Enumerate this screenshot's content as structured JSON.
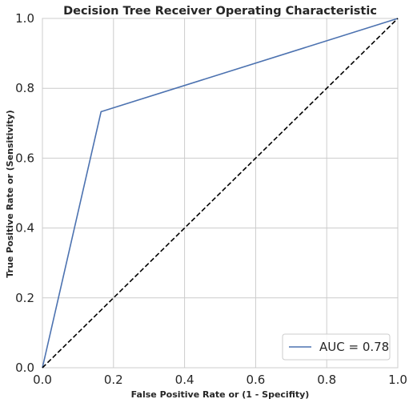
{
  "chart_data": {
    "type": "line",
    "title": "Decision Tree Receiver Operating Characteristic",
    "xlabel": "False Positive Rate or (1 - Specifity)",
    "ylabel": "True Positive Rate or (Sensitivity)",
    "xlim": [
      0.0,
      1.0
    ],
    "ylim": [
      0.0,
      1.0
    ],
    "xticks": [
      "0.0",
      "0.2",
      "0.4",
      "0.6",
      "0.8",
      "1.0"
    ],
    "yticks": [
      "0.0",
      "0.2",
      "0.4",
      "0.6",
      "0.8",
      "1.0"
    ],
    "grid": true,
    "legend_position": "lower-right",
    "series": [
      {
        "name": "AUC = 0.78",
        "style": "solid",
        "color": "#4c72b0",
        "x": [
          0.0,
          0.165,
          1.0
        ],
        "y": [
          0.0,
          0.733,
          1.0
        ]
      },
      {
        "style": "dashed",
        "color": "#000000",
        "x": [
          0.0,
          1.0
        ],
        "y": [
          0.0,
          1.0
        ]
      }
    ]
  }
}
